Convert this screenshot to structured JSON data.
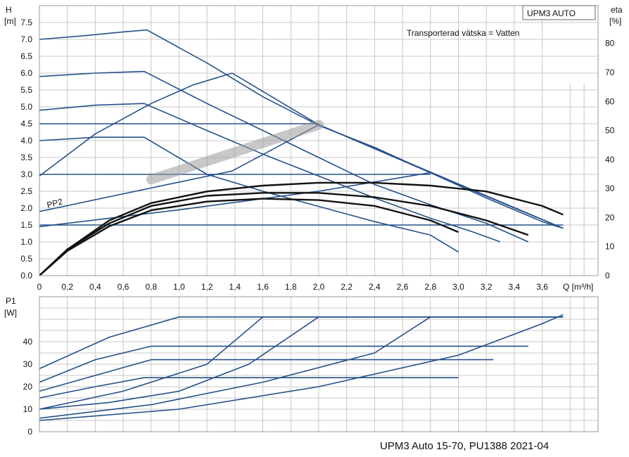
{
  "chart_data": [
    {
      "type": "line",
      "badge": "UPM3 AUTO",
      "annotation": "Transporterad vätska = Vatten",
      "curve_label": "PP2",
      "y_label": [
        "H",
        "[m]"
      ],
      "y2_label": [
        "eta",
        "[%]"
      ],
      "x_label": "Q [m³/h]",
      "xlim": [
        0,
        4.0
      ],
      "ylim": [
        0,
        8.0
      ],
      "y2lim": [
        0,
        93
      ],
      "x_ticks": [
        "0",
        "0,2",
        "0,4",
        "0,6",
        "0,8",
        "1,0",
        "1,2",
        "1,4",
        "1,6",
        "1,8",
        "2,0",
        "2,2",
        "2,4",
        "2,6",
        "2,8",
        "3,0",
        "3,2",
        "3,4",
        "3,6"
      ],
      "y_ticks": [
        "0.0",
        "0.5",
        "1.0",
        "1.5",
        "2.0",
        "2.5",
        "3.0",
        "3.5",
        "4.0",
        "4.5",
        "5.0",
        "5.5",
        "6.0",
        "6.5",
        "7.0",
        "7.5"
      ],
      "y2_ticks": [
        "0",
        "10",
        "20",
        "30",
        "40",
        "50",
        "60",
        "70",
        "80"
      ],
      "grid": true,
      "series": [
        {
          "curve": "head",
          "x": [
            0,
            0.3,
            0.6,
            0.77,
            1.2,
            1.6,
            2.0,
            2.4,
            2.8,
            3.2,
            3.6,
            3.75
          ],
          "y": [
            7.0,
            7.1,
            7.22,
            7.28,
            6.3,
            5.3,
            4.45,
            3.8,
            3.05,
            2.3,
            1.6,
            1.4
          ]
        },
        {
          "curve": "head",
          "x": [
            0,
            0.4,
            0.75,
            1.2,
            1.6,
            2.0,
            2.4,
            2.8,
            3.2,
            3.5
          ],
          "y": [
            5.9,
            6.0,
            6.05,
            5.1,
            4.3,
            3.5,
            2.7,
            2.1,
            1.55,
            1.0
          ]
        },
        {
          "curve": "head",
          "x": [
            0,
            0.4,
            0.75,
            1.2,
            1.6,
            2.0,
            2.4,
            2.8,
            3.1,
            3.3
          ],
          "y": [
            4.9,
            5.05,
            5.1,
            4.3,
            3.6,
            2.95,
            2.3,
            1.7,
            1.3,
            1.0
          ]
        },
        {
          "curve": "head",
          "x": [
            0,
            0.4,
            0.75,
            1.2,
            1.6,
            2.0,
            2.4,
            2.8,
            3.0
          ],
          "y": [
            4.0,
            4.1,
            4.1,
            3.0,
            2.5,
            2.05,
            1.6,
            1.2,
            0.7
          ]
        },
        {
          "curve": "PP2",
          "x": [
            0,
            1.38,
            2.0,
            2.8,
            3.75
          ],
          "y": [
            1.9,
            3.1,
            4.47,
            3.05,
            1.4
          ]
        },
        {
          "curve": "proportional",
          "x": [
            0,
            0.4,
            0.8,
            1.1,
            1.38,
            2.0,
            3.75
          ],
          "y": [
            2.95,
            4.2,
            5.1,
            5.65,
            6.0,
            4.47,
            1.4
          ]
        },
        {
          "curve": "proportional",
          "x": [
            0,
            1.0,
            2.0,
            2.8,
            3.75
          ],
          "y": [
            1.45,
            1.95,
            2.5,
            3.05,
            1.4
          ]
        },
        {
          "curve": "constant",
          "x": [
            0,
            2.0
          ],
          "y": [
            4.5,
            4.5
          ]
        },
        {
          "curve": "constant",
          "x": [
            0,
            2.8
          ],
          "y": [
            3.0,
            3.0
          ]
        },
        {
          "curve": "constant",
          "x": [
            0,
            3.75
          ],
          "y": [
            1.5,
            1.5
          ]
        },
        {
          "curve": "efficiency",
          "axis": "eta",
          "x": [
            0,
            0.2,
            0.5,
            0.8,
            1.2,
            1.6,
            2.0,
            2.4,
            2.8,
            3.2,
            3.6,
            3.75
          ],
          "y": [
            0,
            9,
            19,
            25,
            29,
            31,
            32,
            32,
            31,
            29,
            24,
            21
          ]
        },
        {
          "curve": "efficiency",
          "axis": "eta",
          "x": [
            0,
            0.2,
            0.5,
            0.8,
            1.2,
            1.6,
            2.0,
            2.4,
            2.8,
            3.2,
            3.5
          ],
          "y": [
            0,
            9,
            18,
            24,
            27.5,
            28.5,
            28.5,
            27,
            24,
            19,
            14
          ]
        },
        {
          "curve": "efficiency",
          "axis": "eta",
          "x": [
            0,
            0.2,
            0.5,
            0.8,
            1.2,
            1.6,
            2.0,
            2.4,
            2.8,
            3.0
          ],
          "y": [
            0,
            8.5,
            17,
            22.5,
            25.5,
            26.5,
            26,
            24,
            19,
            15
          ]
        }
      ]
    },
    {
      "type": "line",
      "y_label": [
        "P1",
        "[W]"
      ],
      "xlim": [
        0,
        4.0
      ],
      "ylim": [
        0,
        60
      ],
      "y_ticks": [
        "0",
        "10",
        "20",
        "30",
        "40"
      ],
      "grid": true,
      "series": [
        {
          "x": [
            0,
            0.5,
            1.0,
            1.5,
            2.0,
            2.8,
            3.75
          ],
          "y": [
            28,
            42,
            51,
            51,
            51,
            51,
            51
          ]
        },
        {
          "x": [
            0,
            0.4,
            0.8,
            1.6,
            2.4,
            3.5
          ],
          "y": [
            22,
            32,
            38,
            38,
            38,
            38
          ]
        },
        {
          "x": [
            0,
            0.4,
            0.8,
            1.6,
            2.4,
            3.25
          ],
          "y": [
            18,
            25,
            32,
            32,
            32,
            32
          ]
        },
        {
          "x": [
            0,
            0.4,
            0.75,
            1.6,
            2.4,
            3.0
          ],
          "y": [
            15,
            20,
            24,
            24,
            24,
            24
          ]
        },
        {
          "x": [
            0,
            0.5,
            1.0,
            1.5,
            2.0,
            2.8,
            3.75
          ],
          "y": [
            10,
            13,
            18,
            30,
            51,
            51,
            51
          ]
        },
        {
          "x": [
            0,
            0.6,
            1.2,
            1.6,
            2.0,
            2.8,
            3.75
          ],
          "y": [
            10,
            18,
            30,
            51,
            51,
            51,
            51
          ]
        },
        {
          "x": [
            0,
            0.8,
            1.6,
            2.4,
            2.8,
            3.2,
            3.75
          ],
          "y": [
            6,
            12,
            22,
            35,
            51,
            51,
            51
          ]
        },
        {
          "x": [
            0,
            1.0,
            2.0,
            3.0,
            3.6,
            3.75
          ],
          "y": [
            5,
            10,
            20,
            34,
            48,
            52
          ]
        }
      ]
    }
  ],
  "footer": "UPM3 Auto 15-70, PU1388 2021-04"
}
